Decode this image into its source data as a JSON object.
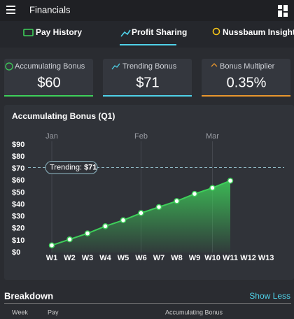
{
  "header": {
    "title": "Financials"
  },
  "tabs": [
    "Pay History",
    "Profit Sharing",
    "Nussbaum Insights"
  ],
  "cards": [
    {
      "label": "Accumulating Bonus",
      "value": "$60"
    },
    {
      "label": "Trending Bonus",
      "value": "$71"
    },
    {
      "label": "Bonus Multiplier",
      "value": "0.35%"
    }
  ],
  "chart": {
    "type": "area",
    "title": "Accumulating Bonus (Q1)",
    "months": [
      "Jan",
      null,
      null,
      null,
      null,
      "Feb",
      null,
      null,
      null,
      "Mar",
      null,
      null,
      null
    ],
    "categories": [
      "W1",
      "W2",
      "W3",
      "W4",
      "W5",
      "W6",
      "W7",
      "W8",
      "W9",
      "W10",
      "W11",
      "W12",
      "W13"
    ],
    "values": [
      6,
      11,
      16,
      22,
      27,
      33,
      38,
      43,
      49,
      54,
      60,
      null,
      null
    ],
    "color": "#3ecf5a",
    "ylim": [
      0,
      90
    ],
    "yticks": [
      {
        "value": 0,
        "label": "$0"
      },
      {
        "value": 10,
        "label": "$10"
      },
      {
        "value": 20,
        "label": "$20"
      },
      {
        "value": 30,
        "label": "$30"
      },
      {
        "value": 40,
        "label": "$40"
      },
      {
        "value": 50,
        "label": "$50"
      },
      {
        "value": 60,
        "label": "$60"
      },
      {
        "value": 70,
        "label": "$70"
      },
      {
        "value": 80,
        "label": "$80"
      },
      {
        "value": 90,
        "label": "$90"
      }
    ],
    "trend": {
      "label": "Trending:",
      "value": 71,
      "value_label": "$71"
    }
  },
  "breakdown": {
    "title": "Breakdown",
    "toggle": "Show Less",
    "columns": [
      "Week",
      "Pay",
      "Accumulating Bonus"
    ]
  }
}
